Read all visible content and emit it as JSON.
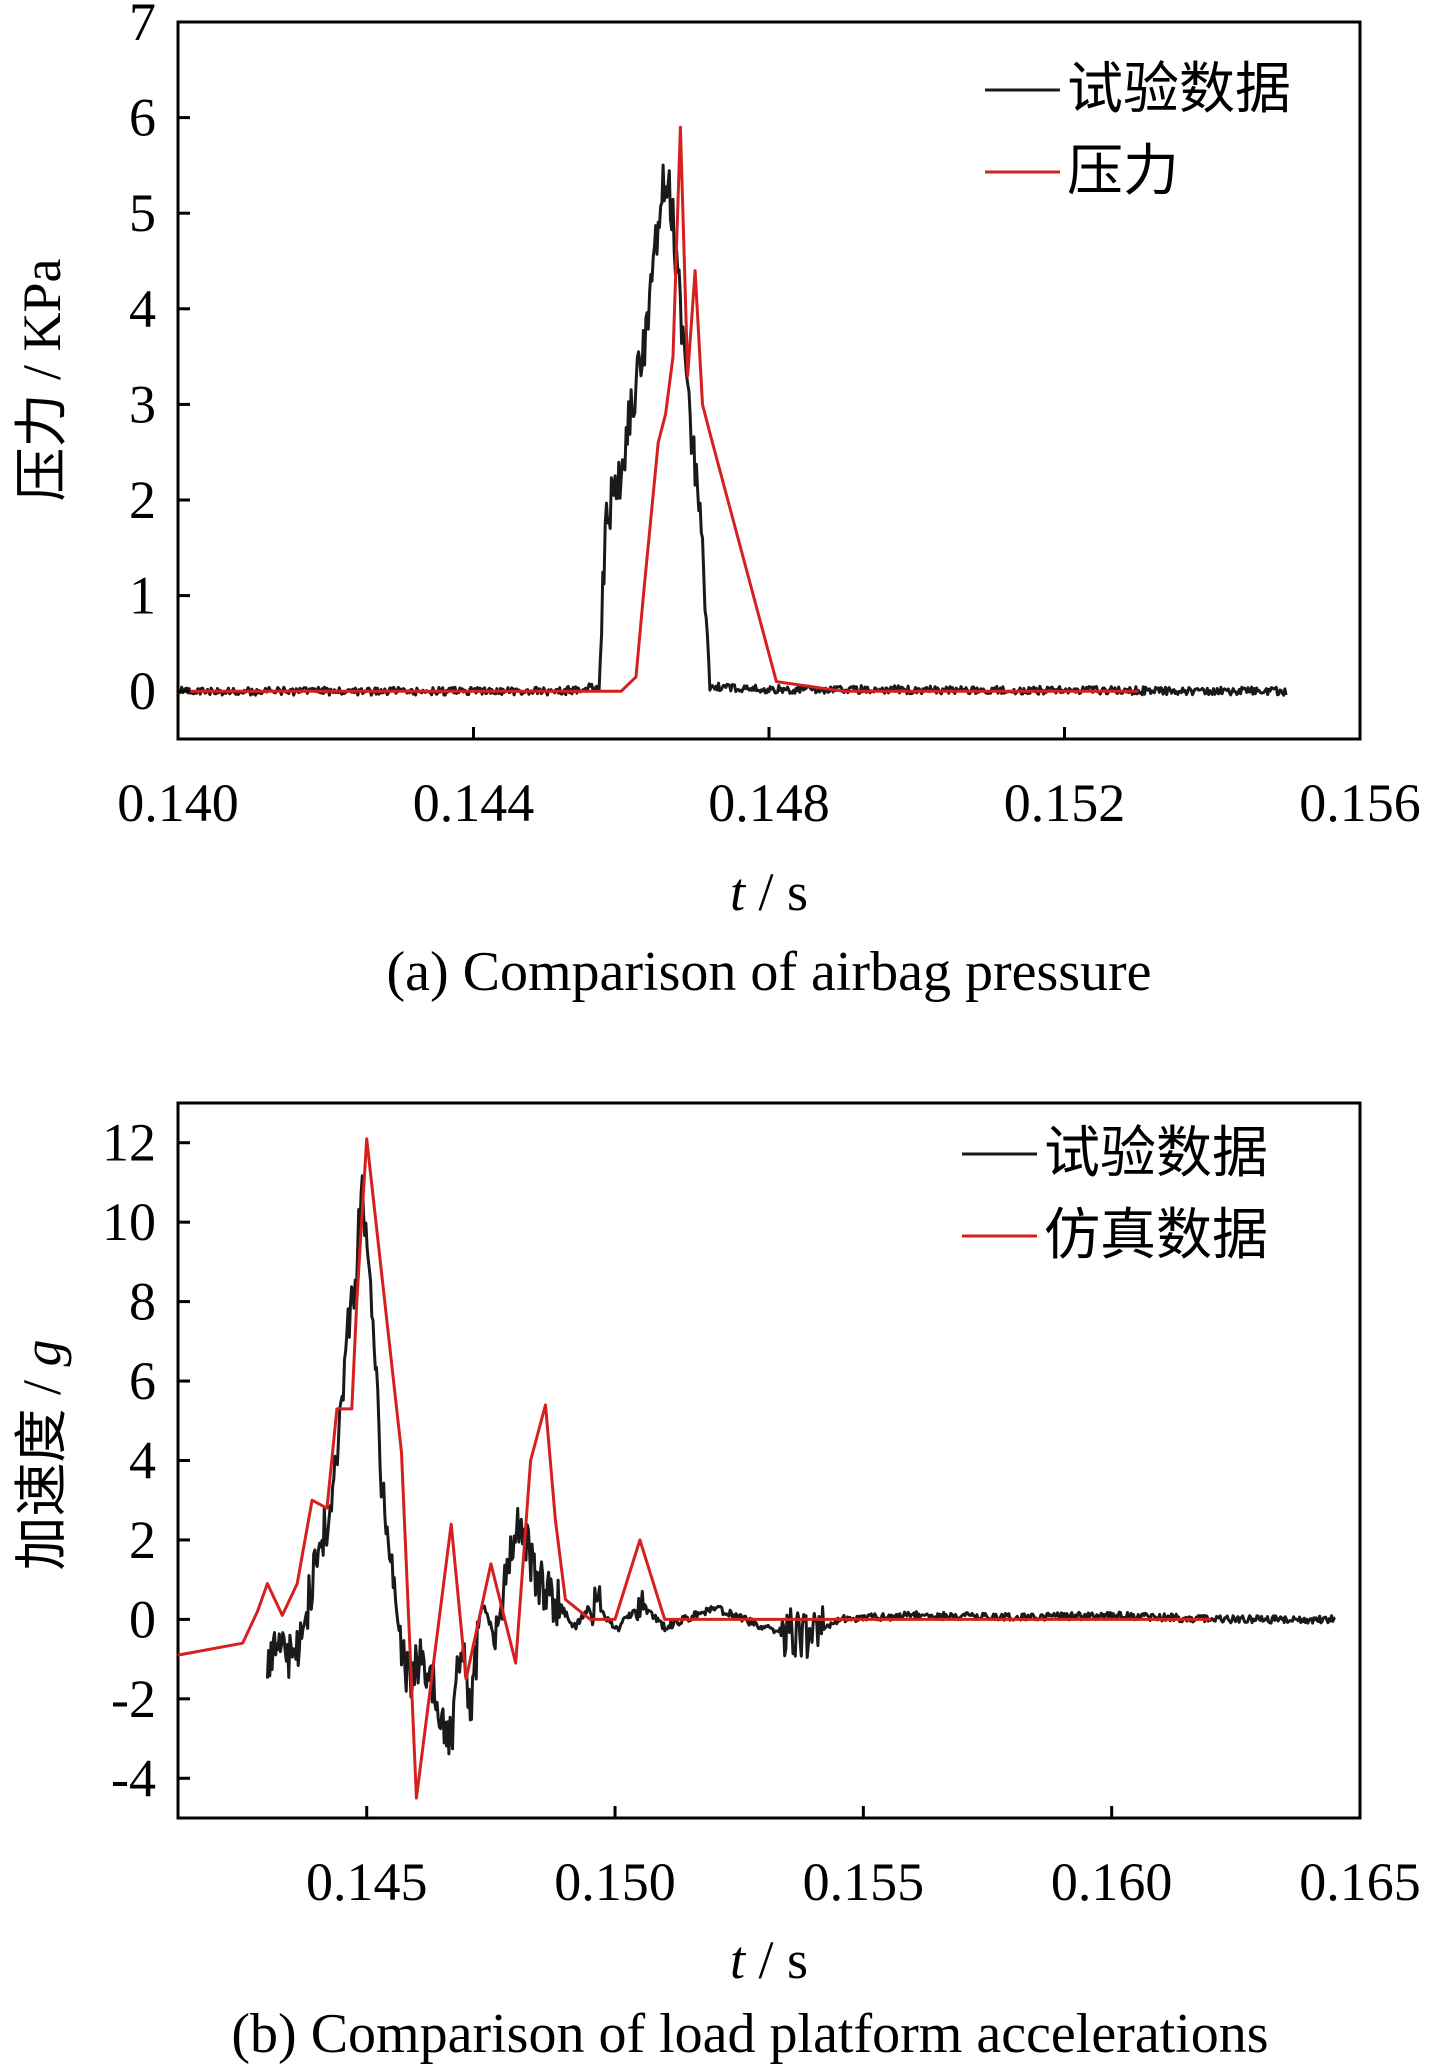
{
  "chart_data": [
    {
      "id": "a",
      "type": "line",
      "caption": "(a) Comparison of airbag pressure",
      "xlabel_var": "t",
      "xlabel_unit": " / s",
      "ylabel": "压力 / KPa",
      "xlim": [
        0.14,
        0.156
      ],
      "ylim": [
        -0.5,
        7
      ],
      "xticks": [
        "0.140",
        "0.144",
        "0.148",
        "0.152",
        "0.156"
      ],
      "xtick_values": [
        0.14,
        0.144,
        0.148,
        0.152,
        0.156
      ],
      "yticks": [
        "0",
        "1",
        "2",
        "3",
        "4",
        "5",
        "6",
        "7"
      ],
      "ytick_values": [
        0,
        1,
        2,
        3,
        4,
        5,
        6,
        7
      ],
      "legend": "top-right",
      "series": [
        {
          "name": "试验数据",
          "color": "#1a1a1a",
          "x": [
            0.14,
            0.1452,
            0.1457,
            0.1458,
            0.1459,
            0.146,
            0.1461,
            0.1462,
            0.1463,
            0.1464,
            0.1465,
            0.1466,
            0.1467,
            0.1468,
            0.1469,
            0.147,
            0.1471,
            0.1472,
            0.148,
            0.155
          ],
          "y": [
            0,
            0,
            0.05,
            1.9,
            2.0,
            2.3,
            2.8,
            3.2,
            3.5,
            4.2,
            4.8,
            5.5,
            4.9,
            4.0,
            3.2,
            2.3,
            1.5,
            0.05,
            0.02,
            0
          ],
          "noise": 0.35
        },
        {
          "name": "压力",
          "color": "#d62020",
          "x": [
            0.14,
            0.146,
            0.1462,
            0.1463,
            0.1465,
            0.1466,
            0.1467,
            0.1468,
            0.1469,
            0.147,
            0.1471,
            0.1472,
            0.1481,
            0.149,
            0.153
          ],
          "y": [
            0,
            0,
            0.15,
            1.0,
            2.6,
            2.9,
            3.5,
            5.9,
            3.3,
            4.4,
            3.0,
            2.7,
            0.1,
            0,
            0
          ]
        }
      ]
    },
    {
      "id": "b",
      "type": "line",
      "caption": "(b) Comparison of load platform accelerations",
      "xlabel_var": "t",
      "xlabel_unit": " / s",
      "ylabel_text": "加速度 / ",
      "ylabel_var": "g",
      "xlim": [
        0.1412,
        0.165
      ],
      "ylim": [
        -5,
        13
      ],
      "xticks": [
        "0.145",
        "0.150",
        "0.155",
        "0.160",
        "0.165"
      ],
      "xtick_values": [
        0.145,
        0.15,
        0.155,
        0.16,
        0.165
      ],
      "yticks": [
        "-4",
        "-2",
        "0",
        "2",
        "4",
        "6",
        "8",
        "10",
        "12"
      ],
      "ytick_values": [
        -4,
        -2,
        0,
        2,
        4,
        6,
        8,
        10,
        12
      ],
      "legend": "top-right",
      "series": [
        {
          "name": "试验数据",
          "color": "#1a1a1a",
          "x": [
            0.143,
            0.1436,
            0.144,
            0.1443,
            0.1446,
            0.1448,
            0.1449,
            0.1451,
            0.1453,
            0.1456,
            0.1458,
            0.1461,
            0.1463,
            0.1467,
            0.1469,
            0.1471,
            0.1473,
            0.1476,
            0.1478,
            0.1481,
            0.1484,
            0.1488,
            0.1492,
            0.1496,
            0.15,
            0.1505,
            0.151,
            0.152,
            0.153,
            0.154,
            0.1545,
            0.156,
            0.158,
            0.16,
            0.162,
            0.1645
          ],
          "y": [
            -0.9,
            -0.9,
            1.5,
            3.0,
            7.0,
            9.0,
            11.0,
            8.0,
            3.5,
            0.2,
            -1.5,
            -1.0,
            -1.5,
            -3.0,
            -0.5,
            -2.5,
            0.5,
            -0.5,
            1.0,
            2.5,
            1.0,
            0.5,
            -0.2,
            0.5,
            -0.3,
            0.4,
            -0.2,
            0.3,
            -0.2,
            -0.5,
            0,
            0.1,
            0.05,
            0.1,
            0,
            0
          ],
          "noise": 0.8
        },
        {
          "name": "仿真数据",
          "color": "#d62020",
          "x": [
            0.1412,
            0.1425,
            0.1428,
            0.143,
            0.1433,
            0.1436,
            0.1439,
            0.1442,
            0.1444,
            0.1447,
            0.1448,
            0.145,
            0.1457,
            0.146,
            0.1467,
            0.147,
            0.1475,
            0.148,
            0.1483,
            0.1486,
            0.1488,
            0.149,
            0.1495,
            0.15,
            0.1505,
            0.151,
            0.152,
            0.162
          ],
          "y": [
            -0.9,
            -0.6,
            0.2,
            0.9,
            0.1,
            0.9,
            3.0,
            2.8,
            5.3,
            5.3,
            8.0,
            12.1,
            4.2,
            -4.5,
            2.4,
            -1.5,
            1.4,
            -1.1,
            4.0,
            5.4,
            2.5,
            0.5,
            0.0,
            0.0,
            2.0,
            0.0,
            0.0,
            0.0
          ]
        }
      ]
    }
  ]
}
